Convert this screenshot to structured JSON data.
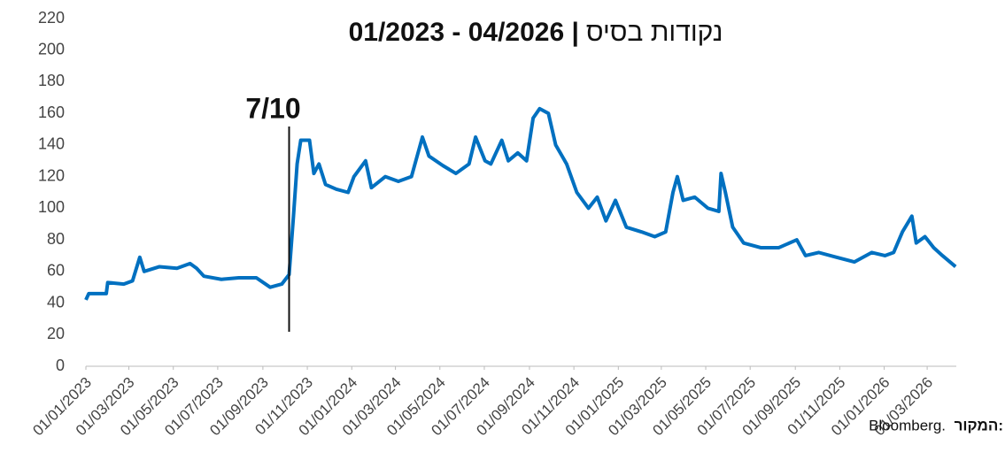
{
  "chart_data": {
    "type": "line",
    "title": "01/2023 - 04/2026 |",
    "title_units": "נקודות בסיס",
    "annotation": {
      "text": "7/10",
      "x": "2023-10-07"
    },
    "source_label": "המקור:",
    "source": "Bloomberg.",
    "x": [
      "2023-01-01",
      "2023-01-05",
      "2023-01-29",
      "2023-01-31",
      "2023-02-22",
      "2023-03-06",
      "2023-03-16",
      "2023-03-22",
      "2023-04-12",
      "2023-05-06",
      "2023-05-24",
      "2023-06-02",
      "2023-06-12",
      "2023-07-06",
      "2023-07-30",
      "2023-08-23",
      "2023-09-11",
      "2023-09-27",
      "2023-10-07",
      "2023-10-13",
      "2023-10-18",
      "2023-10-23",
      "2023-11-04",
      "2023-11-10",
      "2023-11-17",
      "2023-11-26",
      "2023-12-11",
      "2023-12-27",
      "2024-01-04",
      "2024-01-20",
      "2024-01-28",
      "2024-02-16",
      "2024-03-05",
      "2024-03-23",
      "2024-04-07",
      "2024-04-16",
      "2024-05-05",
      "2024-05-23",
      "2024-06-10",
      "2024-06-19",
      "2024-07-02",
      "2024-07-10",
      "2024-07-25",
      "2024-08-03",
      "2024-08-16",
      "2024-08-28",
      "2024-09-06",
      "2024-09-15",
      "2024-09-27",
      "2024-10-07",
      "2024-10-22",
      "2024-11-05",
      "2024-11-21",
      "2024-12-03",
      "2024-12-15",
      "2024-12-28",
      "2025-01-12",
      "2025-02-02",
      "2025-02-20",
      "2025-03-07",
      "2025-03-17",
      "2025-03-23",
      "2025-03-31",
      "2025-04-16",
      "2025-05-04",
      "2025-05-19",
      "2025-05-22",
      "2025-05-28",
      "2025-06-07",
      "2025-06-22",
      "2025-07-16",
      "2025-08-09",
      "2025-09-03",
      "2025-09-15",
      "2025-10-03",
      "2025-10-27",
      "2025-11-21",
      "2025-12-15",
      "2026-01-02",
      "2026-01-14",
      "2026-01-26",
      "2026-02-08",
      "2026-02-14",
      "2026-02-26",
      "2026-03-10",
      "2026-03-22",
      "2026-04-09"
    ],
    "series": [
      {
        "color": "#0070c0",
        "values": [
          42,
          46,
          46,
          53,
          52,
          54,
          69,
          60,
          63,
          62,
          65,
          62,
          57,
          55,
          56,
          56,
          50,
          52,
          58,
          95,
          128,
          143,
          143,
          122,
          128,
          115,
          112,
          110,
          120,
          130,
          113,
          120,
          117,
          120,
          145,
          133,
          127,
          122,
          128,
          145,
          130,
          128,
          143,
          130,
          135,
          130,
          157,
          163,
          160,
          140,
          128,
          110,
          100,
          107,
          92,
          105,
          88,
          85,
          82,
          85,
          110,
          120,
          105,
          107,
          100,
          98,
          122,
          110,
          88,
          78,
          75,
          75,
          80,
          70,
          72,
          69,
          66,
          72,
          70,
          72,
          85,
          95,
          78,
          82,
          75,
          70,
          63
        ]
      }
    ],
    "xlim": [
      "2023-01-01",
      "2026-04-10"
    ],
    "xticks": [
      {
        "value": "2023-01-01",
        "label": "01/01/2023"
      },
      {
        "value": "2023-03-01",
        "label": "01/03/2023"
      },
      {
        "value": "2023-05-01",
        "label": "01/05/2023"
      },
      {
        "value": "2023-07-01",
        "label": "01/07/2023"
      },
      {
        "value": "2023-09-01",
        "label": "01/09/2023"
      },
      {
        "value": "2023-11-01",
        "label": "01/11/2023"
      },
      {
        "value": "2024-01-01",
        "label": "01/01/2024"
      },
      {
        "value": "2024-03-01",
        "label": "01/03/2024"
      },
      {
        "value": "2024-05-01",
        "label": "01/05/2024"
      },
      {
        "value": "2024-07-01",
        "label": "01/07/2024"
      },
      {
        "value": "2024-09-01",
        "label": "01/09/2024"
      },
      {
        "value": "2024-11-01",
        "label": "01/11/2024"
      },
      {
        "value": "2025-01-01",
        "label": "01/01/2025"
      },
      {
        "value": "2025-03-01",
        "label": "01/03/2025"
      },
      {
        "value": "2025-05-01",
        "label": "01/05/2025"
      },
      {
        "value": "2025-07-01",
        "label": "01/07/2025"
      },
      {
        "value": "2025-09-01",
        "label": "01/09/2025"
      },
      {
        "value": "2025-11-01",
        "label": "01/11/2025"
      },
      {
        "value": "2026-01-01",
        "label": "01/01/2026"
      },
      {
        "value": "2026-03-01",
        "label": "01/03/2026"
      }
    ],
    "ylim": [
      0,
      220
    ],
    "yticks": [
      0,
      20,
      40,
      60,
      80,
      100,
      120,
      140,
      160,
      180,
      200,
      220
    ]
  }
}
